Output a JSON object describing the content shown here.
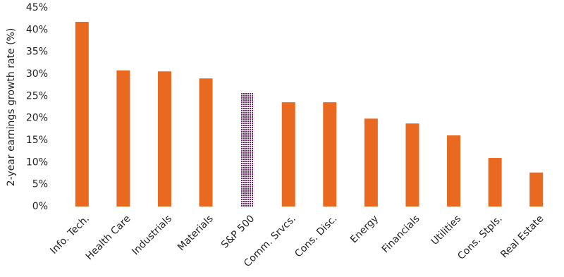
{
  "chart_data": {
    "type": "bar",
    "y_label": "2-year earnings growth rate (%)",
    "categories": [
      "Info. Tech.",
      "Health Care",
      "Industrials",
      "Materials",
      "S&P 500",
      "Comm. Srvcs.",
      "Cons. Disc.",
      "Energy",
      "Financials",
      "Utilities",
      "Cons. Stpls.",
      "Real Estate"
    ],
    "values": [
      41.8,
      30.8,
      30.6,
      29.0,
      25.8,
      23.6,
      23.6,
      19.9,
      18.8,
      16.1,
      11.0,
      7.7
    ],
    "colors": [
      "#e8691f",
      "#e8691f",
      "#e8691f",
      "#e8691f",
      "#7b1f6e",
      "#e8691f",
      "#e8691f",
      "#e8691f",
      "#e8691f",
      "#e8691f",
      "#e8691f",
      "#e8691f"
    ],
    "fill_patterns": [
      "solid",
      "solid",
      "solid",
      "solid",
      "hatch",
      "solid",
      "solid",
      "solid",
      "solid",
      "solid",
      "solid",
      "solid"
    ],
    "ylim": [
      0,
      45
    ],
    "yticks": [
      {
        "value": 0,
        "label": "0%"
      },
      {
        "value": 5,
        "label": "5%"
      },
      {
        "value": 10,
        "label": "10%"
      },
      {
        "value": 15,
        "label": "15%"
      },
      {
        "value": 20,
        "label": "20%"
      },
      {
        "value": 25,
        "label": "25%"
      },
      {
        "value": 30,
        "label": "30%"
      },
      {
        "value": 35,
        "label": "35%"
      },
      {
        "value": 40,
        "label": "40%"
      },
      {
        "value": 45,
        "label": "45%"
      }
    ],
    "grid": false
  }
}
